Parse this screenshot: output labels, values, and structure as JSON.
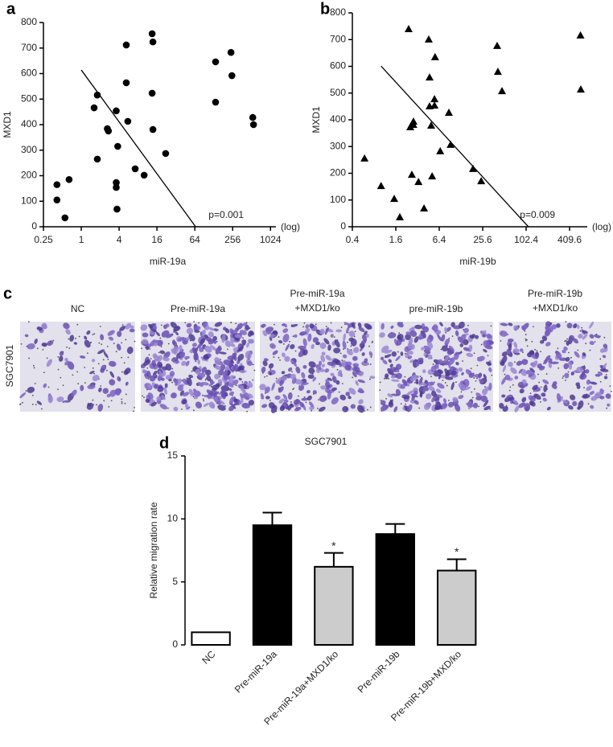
{
  "chart_data": [
    {
      "type": "scatter",
      "panel": "a",
      "marker": "circle",
      "color": "#000000",
      "log_x": true,
      "x_label": "miR-19a",
      "y_label": "MXD1",
      "x_unit": "(log)",
      "annotation": "p=0.001",
      "x": [
        0.41,
        0.41,
        0.64,
        0.55,
        1.6,
        1.8,
        1.8,
        2.6,
        2.7,
        3.6,
        3.8,
        3.6,
        3.6,
        3.7,
        5.2,
        5.2,
        5.5,
        7.2,
        10,
        13.4,
        13.8,
        13.4,
        13.8,
        22,
        137,
        137,
        241,
        249,
        535,
        550
      ],
      "y": [
        165,
        105,
        185,
        35,
        466,
        516,
        265,
        384,
        375,
        454,
        315,
        173,
        154,
        69,
        712,
        564,
        413,
        227,
        202,
        756,
        724,
        523,
        381,
        287,
        646,
        488,
        683,
        592,
        428,
        400
      ],
      "trend_line": {
        "x": [
          1,
          66
        ],
        "y": [
          614,
          0
        ]
      },
      "xlim": [
        0.25,
        1250
      ],
      "ylim": [
        0,
        800
      ],
      "xticks": [
        0.25,
        1,
        4,
        16,
        64,
        256,
        1024
      ],
      "yticks": [
        0,
        100,
        200,
        300,
        400,
        500,
        600,
        700,
        800
      ]
    },
    {
      "type": "scatter",
      "panel": "b",
      "marker": "triangle",
      "color": "#000000",
      "log_x": true,
      "x_label": "miR-19b",
      "y_label": "MXD1",
      "x_unit": "(log)",
      "annotation": "p=0.009",
      "x": [
        0.59,
        1.0,
        1.52,
        1.82,
        2.41,
        2.54,
        2.67,
        2.81,
        2.8,
        3.3,
        3.94,
        4.58,
        4.7,
        4.7,
        4.95,
        5.1,
        5.5,
        5.5,
        5.6,
        6.6,
        8.7,
        9.2,
        18.8,
        24.4,
        40.6,
        41.6,
        47.4,
        580,
        586
      ],
      "y": [
        256,
        153,
        105,
        36,
        740,
        373,
        195,
        394,
        382,
        168,
        69,
        701,
        559,
        451,
        379,
        189,
        454,
        478,
        635,
        283,
        427,
        307,
        217,
        171,
        677,
        580,
        508,
        716,
        514
      ],
      "trend_line": {
        "x": [
          1,
          110
        ],
        "y": [
          601,
          0
        ]
      },
      "xlim": [
        0.4,
        720
      ],
      "ylim": [
        0,
        800
      ],
      "xticks": [
        0.4,
        1.6,
        6.4,
        25.6,
        102.4,
        409.6
      ],
      "yticks": [
        0,
        100,
        200,
        300,
        400,
        500,
        600,
        700,
        800
      ]
    },
    {
      "type": "bar",
      "panel": "d",
      "title": "SGC7901",
      "y_label": "Relative migration rate",
      "categories": [
        "NC",
        "Pre-miR-19a",
        "Pre-miR-19a+MXD1/ko",
        "Pre-miR-19b",
        "Pre-miR-19b+MXD/ko"
      ],
      "values": [
        1.0,
        9.5,
        6.2,
        8.8,
        5.9
      ],
      "errors": [
        null,
        1.0,
        1.1,
        0.8,
        0.9
      ],
      "colors": [
        "#ffffff",
        "#000000",
        "#cccccc",
        "#000000",
        "#cccccc"
      ],
      "significance": [
        null,
        null,
        "*",
        null,
        "*"
      ],
      "ylim": [
        0,
        15
      ],
      "yticks": [
        0,
        5,
        10,
        15
      ]
    }
  ],
  "image_panel": {
    "panel": "c",
    "row_label": "SGC7901",
    "column_labels": [
      [
        "NC"
      ],
      [
        "Pre-miR-19a"
      ],
      [
        "Pre-miR-19a",
        "+MXD1/ko"
      ],
      [
        "pre-miR-19b"
      ],
      [
        "Pre-miR-19b",
        "+MXD1/ko"
      ]
    ]
  }
}
